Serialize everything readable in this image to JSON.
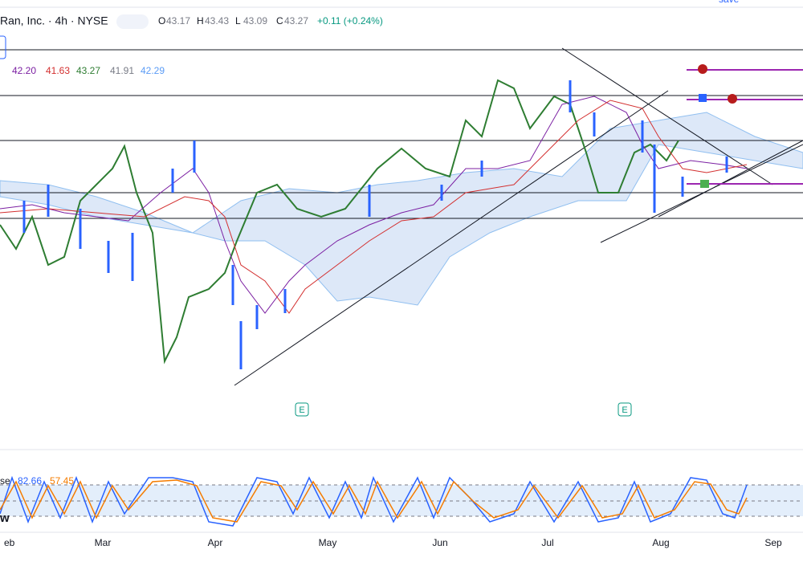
{
  "header": {
    "symbol": "Ran, Inc. · 4h · NYSE",
    "save": "save",
    "ohlc": [
      {
        "label": "O",
        "value": "43.17"
      },
      {
        "label": "H",
        "value": "43.43"
      },
      {
        "label": "L",
        "value": "43.09"
      },
      {
        "label": "C",
        "value": "43.27"
      }
    ],
    "change": "+0.11 (+0.24%)"
  },
  "ichimoku": {
    "values": [
      "42.20",
      "41.63",
      "43.27",
      "41.91",
      "42.29"
    ]
  },
  "earnings": [
    "E",
    "E"
  ],
  "stochastic": {
    "name": "se",
    "k": "82.66",
    "d": "57.45",
    "side": "w"
  },
  "months": [
    "eb",
    "Mar",
    "Apr",
    "May",
    "Jun",
    "Jul",
    "Aug",
    "Sep"
  ]
}
